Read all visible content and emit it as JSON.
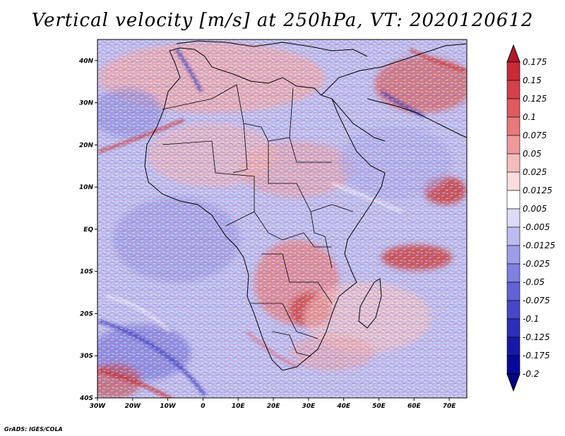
{
  "title": "Vertical velocity [m/s] at 250hPa, VT: 2020120612",
  "credit": "GrADS: IGES/COLA",
  "map": {
    "lon_range": [
      -30,
      75
    ],
    "lat_range": [
      -40,
      45
    ],
    "lon_ticks": [
      "30W",
      "20W",
      "10W",
      "0",
      "10E",
      "20E",
      "30E",
      "40E",
      "50E",
      "60E",
      "70E"
    ],
    "lat_ticks": [
      "40N",
      "30N",
      "20N",
      "10N",
      "EQ",
      "10S",
      "20S",
      "30S",
      "40S"
    ]
  },
  "colorbar": {
    "levels": [
      "0.175",
      "0.15",
      "0.125",
      "0.1",
      "0.075",
      "0.05",
      "0.025",
      "0.0125",
      "0.005",
      "-0.005",
      "-0.0125",
      "-0.025",
      "-0.05",
      "-0.075",
      "-0.1",
      "-0.125",
      "-0.175",
      "-0.2"
    ],
    "colors": [
      "#b2182b",
      "#c92a35",
      "#d6404a",
      "#e05a60",
      "#e8797c",
      "#ef9a9a",
      "#f5bcbc",
      "#fadcdc",
      "#ffffff",
      "#dcdcf8",
      "#bcbcf0",
      "#9e9ee8",
      "#8080e0",
      "#6262d6",
      "#4646c8",
      "#2e2eb8",
      "#1818a8",
      "#08089a",
      "#000088"
    ]
  }
}
